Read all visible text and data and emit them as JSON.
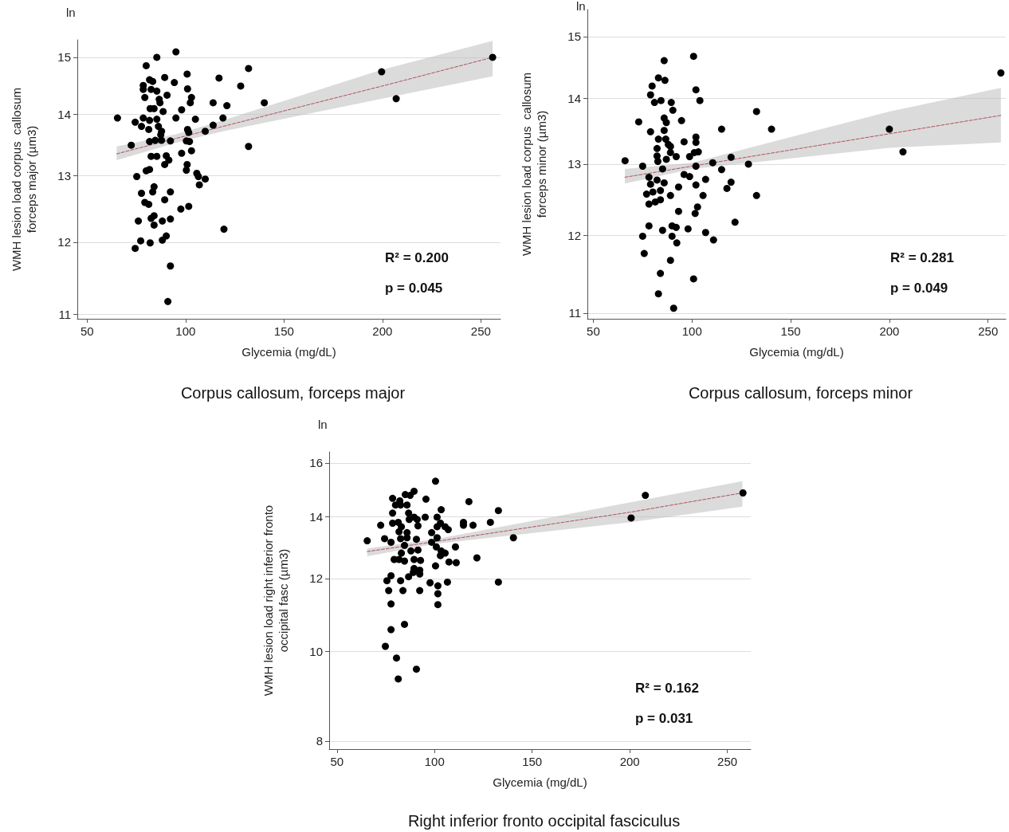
{
  "chart_data": [
    {
      "type": "scatter",
      "title": "Corpus callosum, forceps major",
      "xlabel": "Glycemia (mg/dL)",
      "ylabel": "WMH lesion load corpus  callosum\nforceps major (µm3)",
      "annotations": [
        "ln",
        "R² = 0.200",
        "p = 0.045"
      ],
      "log": "y",
      "grid": "y",
      "xlim": [
        45,
        260
      ],
      "xticks": [
        50,
        100,
        150,
        200,
        250
      ],
      "ylim": [
        10.94,
        15.32
      ],
      "yticks": [
        11,
        12,
        13,
        14,
        15
      ],
      "series": [
        {
          "marker": "circle",
          "color": "#000000",
          "x": [
            95.1,
            85.4,
            80,
            100.8,
            117,
            89.4,
            94.3,
            81.7,
            83.3,
            78.5,
            78.5,
            82.5,
            85.4,
            90.6,
            101,
            103,
            102.4,
            79.3,
            86.6,
            87,
            114,
            121,
            82,
            84,
            88.6,
            98,
            65.4,
            74.4,
            78.5,
            77.6,
            81.7,
            85.4,
            95.1,
            105,
            119,
            114,
            81.3,
            86.2,
            87.8,
            101,
            101.6,
            87.4,
            110,
            72.4,
            81.7,
            84.6,
            87.8,
            92.3,
            102,
            100.4,
            103,
            98,
            82.5,
            85.4,
            90.2,
            91.5,
            89.4,
            100.8,
            100.4,
            80,
            81.7,
            105.7,
            106.5,
            110,
            75.2,
            107,
            84,
            83.3,
            77.6,
            92.3,
            89.4,
            79.3,
            81.3,
            97.6,
            101.6,
            76,
            82.5,
            84,
            84,
            88.2,
            92.3,
            119.5,
            77.2,
            74.4,
            82,
            88.2,
            90.2,
            92.3,
            91,
            132,
            128,
            140,
            132,
            199.6,
            207,
            256
          ],
          "values": [
            15.1,
            15.0,
            14.85,
            14.7,
            14.63,
            14.64,
            14.55,
            14.6,
            14.57,
            14.5,
            14.43,
            14.43,
            14.4,
            14.33,
            14.44,
            14.29,
            14.2,
            14.29,
            14.26,
            14.2,
            14.2,
            14.15,
            14.1,
            14.1,
            14.05,
            14.08,
            13.94,
            13.87,
            13.94,
            13.8,
            13.9,
            13.92,
            13.94,
            13.92,
            13.94,
            13.82,
            13.75,
            13.8,
            13.72,
            13.75,
            13.7,
            13.66,
            13.72,
            13.49,
            13.55,
            13.57,
            13.57,
            13.56,
            13.55,
            13.56,
            13.4,
            13.36,
            13.31,
            13.31,
            13.32,
            13.25,
            13.18,
            13.18,
            13.09,
            13.08,
            13.1,
            13.04,
            12.99,
            12.95,
            12.99,
            12.86,
            12.83,
            12.75,
            12.73,
            12.75,
            12.63,
            12.59,
            12.56,
            12.49,
            12.53,
            12.31,
            12.35,
            12.39,
            12.25,
            12.31,
            12.34,
            12.19,
            12.02,
            11.91,
            11.99,
            12.03,
            12.09,
            11.66,
            11.17,
            14.8,
            14.49,
            14.2,
            13.47,
            14.74,
            14.27,
            15.0
          ]
        },
        {
          "type": "line",
          "marker": "none",
          "color": "#b0505a",
          "line_style": "dashed",
          "x": [
            65,
            95,
            119,
            200,
            256
          ],
          "values": [
            13.35,
            13.6,
            13.8,
            14.49,
            15.0
          ],
          "lower": [
            13.25,
            13.53,
            13.72,
            14.27,
            14.66
          ],
          "upper": [
            13.47,
            13.67,
            13.9,
            14.78,
            15.3
          ]
        }
      ]
    },
    {
      "type": "scatter",
      "title": "Corpus callosum, forceps minor",
      "xlabel": "Glycemia (mg/dL)",
      "ylabel": "WMH lesion load corpus  callosum\nforceps minor (µm3)",
      "annotations": [
        "ln",
        "R² = 0.281",
        "p = 0.049"
      ],
      "log": "y",
      "grid": "y",
      "xlim": [
        47,
        259
      ],
      "xticks": [
        50,
        100,
        150,
        200,
        250
      ],
      "ylim": [
        10.93,
        15.46
      ],
      "yticks": [
        11,
        12,
        13,
        14,
        15
      ],
      "series": [
        {
          "marker": "circle",
          "color": "#000000",
          "x": [
            100.8,
            85.9,
            83,
            86.3,
            79.8,
            79,
            102,
            104,
            81,
            84.3,
            89.5,
            90.3,
            73,
            85.9,
            87,
            94.7,
            115,
            79,
            85.9,
            83,
            86.7,
            96,
            102,
            102,
            88,
            89.1,
            82.3,
            89.1,
            92,
            82.3,
            82.7,
            87,
            98.8,
            101.2,
            103.2,
            66.1,
            75,
            78.2,
            96,
            98.8,
            115,
            106.9,
            79,
            82.3,
            85.9,
            102,
            93.2,
            119.8,
            117.7,
            77,
            80.2,
            84,
            89.1,
            105.6,
            78.2,
            81.4,
            84,
            93.2,
            102.8,
            101.6,
            121.8,
            78.2,
            75,
            85.1,
            89.9,
            92,
            98,
            106.9,
            110.9,
            89.9,
            92.3,
            75.8,
            89.1,
            84,
            100.8,
            83,
            90.7,
            85.1,
            102,
            110.5,
            119.8,
            132.7,
            140.3,
            128.6,
            132.7,
            200,
            206.9,
            256.5
          ],
          "values": [
            14.67,
            14.6,
            14.32,
            14.28,
            14.19,
            14.05,
            14.13,
            13.96,
            13.93,
            13.96,
            13.93,
            13.81,
            13.63,
            13.69,
            13.62,
            13.65,
            13.52,
            13.48,
            13.5,
            13.37,
            13.37,
            13.33,
            13.4,
            13.32,
            13.29,
            13.26,
            13.23,
            13.17,
            13.11,
            13.12,
            13.04,
            13.07,
            13.11,
            13.17,
            13.18,
            13.05,
            12.97,
            12.81,
            12.85,
            12.82,
            12.92,
            12.78,
            12.71,
            12.77,
            12.73,
            12.7,
            12.67,
            12.74,
            12.65,
            12.57,
            12.6,
            12.62,
            12.55,
            12.55,
            12.43,
            12.46,
            12.49,
            12.33,
            12.39,
            12.3,
            12.18,
            12.13,
            11.99,
            12.07,
            12.13,
            12.11,
            12.09,
            12.04,
            11.94,
            11.99,
            11.9,
            11.76,
            11.67,
            11.5,
            11.43,
            11.24,
            11.06,
            12.93,
            12.97,
            13.02,
            13.1,
            13.79,
            13.52,
            13.0,
            12.55,
            13.52,
            13.18,
            14.4
          ]
        },
        {
          "type": "line",
          "marker": "none",
          "color": "#b0505a",
          "line_style": "dashed",
          "x": [
            66,
            100,
            200,
            256.5
          ],
          "values": [
            12.81,
            12.97,
            13.45,
            13.73
          ],
          "lower": [
            12.72,
            12.93,
            13.24,
            13.32
          ],
          "upper": [
            12.93,
            13.02,
            13.79,
            14.16
          ]
        }
      ]
    },
    {
      "type": "scatter",
      "title": "Right inferior fronto occipital fasciculus",
      "xlabel": "Glycemia (mg/dL)",
      "ylabel": "WMH lesion load right inferior fronto\noccipital fasc (µm3)",
      "annotations": [
        "ln",
        "R² = 0.162",
        "p = 0.031"
      ],
      "log": "y",
      "grid": "y",
      "xlim": [
        46,
        262
      ],
      "xticks": [
        50,
        100,
        150,
        200,
        250
      ],
      "ylim": [
        7.84,
        16.45
      ],
      "yticks": [
        8,
        10,
        12,
        14,
        16
      ],
      "series": [
        {
          "marker": "circle",
          "color": "#000000",
          "x": [
            100.5,
            89.5,
            85,
            87.5,
            78.5,
            82.2,
            80,
            82.6,
            85.9,
            95.6,
            117.6,
            132.7,
            103.4,
            78.5,
            86.7,
            89.5,
            95.2,
            101.3,
            91.1,
            87,
            72.4,
            78.5,
            81.4,
            83,
            91.5,
            101.3,
            103,
            105.4,
            107,
            114.8,
            114.8,
            119.7,
            128.6,
            81.8,
            85.9,
            98.5,
            65.5,
            74.4,
            77.7,
            82.6,
            85.9,
            90.7,
            101.3,
            98.5,
            84.6,
            87.9,
            91.5,
            100.9,
            103.4,
            110.7,
            83,
            103,
            105.4,
            121.7,
            79.3,
            81.8,
            84.6,
            89.5,
            92.8,
            107.4,
            111.1,
            89.5,
            92.4,
            100.5,
            89.1,
            92.4,
            77.7,
            75.6,
            82.6,
            86.7,
            97.7,
            101.7,
            106.6,
            132.7,
            76.5,
            83.8,
            92.4,
            101.7,
            77.7,
            101.7,
            77.7,
            84.6,
            74.8,
            80.5,
            90.7,
            81.4,
            140.4,
            208,
            200.7,
            258
          ],
          "values": [
            15.29,
            14.91,
            14.79,
            14.76,
            14.65,
            14.56,
            14.41,
            14.41,
            14.41,
            14.62,
            14.53,
            14.21,
            14.24,
            14.12,
            14.12,
            13.98,
            13.98,
            13.98,
            13.9,
            13.9,
            13.7,
            13.77,
            13.8,
            13.65,
            13.68,
            13.65,
            13.77,
            13.65,
            13.55,
            13.8,
            13.7,
            13.7,
            13.8,
            13.48,
            13.45,
            13.45,
            13.18,
            13.25,
            13.13,
            13.25,
            13.28,
            13.23,
            13.28,
            13.13,
            13.03,
            12.85,
            12.88,
            12.98,
            12.85,
            12.98,
            12.78,
            12.7,
            12.78,
            12.63,
            12.58,
            12.58,
            12.53,
            12.58,
            12.55,
            12.5,
            12.48,
            12.3,
            12.25,
            12.38,
            12.18,
            12.13,
            12.08,
            11.93,
            11.93,
            12.05,
            11.87,
            11.78,
            11.89,
            11.89,
            11.64,
            11.64,
            11.64,
            11.55,
            11.26,
            11.24,
            10.56,
            10.7,
            10.13,
            9.84,
            9.57,
            9.34,
            13.28,
            14.76,
            13.95,
            14.85
          ]
        },
        {
          "type": "line",
          "marker": "none",
          "color": "#b0505a",
          "line_style": "dashed",
          "x": [
            65.5,
            100,
            200,
            257.7
          ],
          "values": [
            12.83,
            13.15,
            14.15,
            14.85
          ],
          "lower": [
            12.68,
            13.08,
            13.8,
            14.35
          ],
          "upper": [
            12.93,
            13.23,
            14.5,
            15.29
          ]
        }
      ]
    }
  ]
}
